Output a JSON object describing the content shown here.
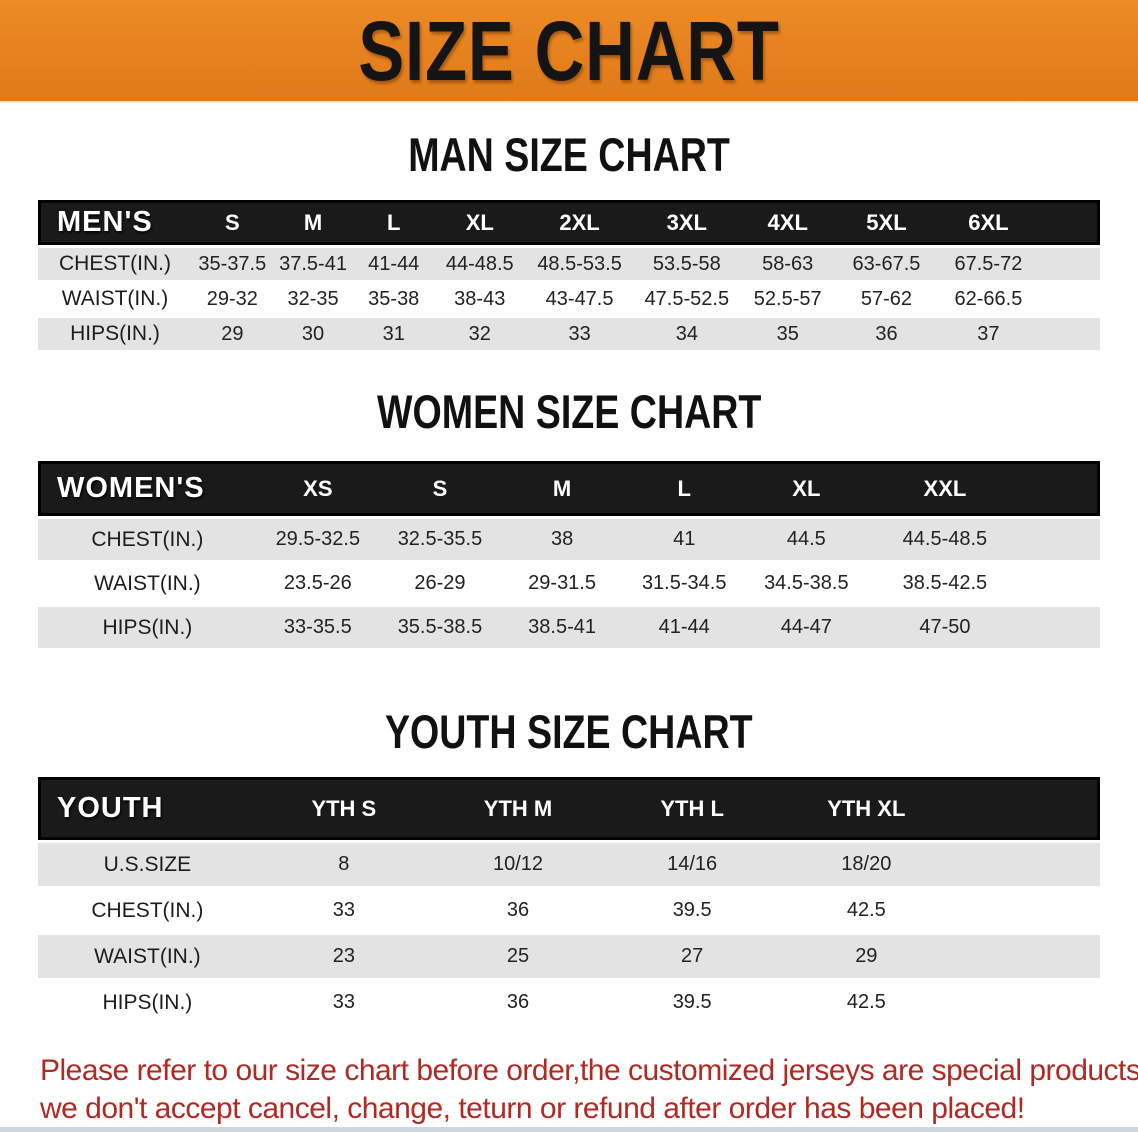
{
  "banner": {
    "title": "SIZE CHART",
    "background": "#e5811e",
    "text_color": "#141414"
  },
  "sections": [
    {
      "heading": "MAN SIZE CHART",
      "table": {
        "label": "MEN'S",
        "columns": [
          "S",
          "M",
          "L",
          "XL",
          "2XL",
          "3XL",
          "4XL",
          "5XL",
          "6XL"
        ],
        "rows": [
          {
            "label": "CHEST(IN.)",
            "values": [
              "35-37.5",
              "37.5-41",
              "41-44",
              "44-48.5",
              "48.5-53.5",
              "53.5-58",
              "58-63",
              "63-67.5",
              "67.5-72"
            ]
          },
          {
            "label": "WAIST(IN.)",
            "values": [
              "29-32",
              "32-35",
              "35-38",
              "38-43",
              "43-47.5",
              "47.5-52.5",
              "52.5-57",
              "57-62",
              "62-66.5"
            ]
          },
          {
            "label": "HIPS(IN.)",
            "values": [
              "29",
              "30",
              "31",
              "32",
              "33",
              "34",
              "35",
              "36",
              "37"
            ]
          }
        ]
      }
    },
    {
      "heading": "WOMEN SIZE CHART",
      "table": {
        "label": "WOMEN'S",
        "columns": [
          "XS",
          "S",
          "M",
          "L",
          "XL",
          "XXL"
        ],
        "rows": [
          {
            "label": "CHEST(IN.)",
            "values": [
              "29.5-32.5",
              "32.5-35.5",
              "38",
              "41",
              "44.5",
              "44.5-48.5"
            ]
          },
          {
            "label": "WAIST(IN.)",
            "values": [
              "23.5-26",
              "26-29",
              "29-31.5",
              "31.5-34.5",
              "34.5-38.5",
              "38.5-42.5"
            ]
          },
          {
            "label": "HIPS(IN.)",
            "values": [
              "33-35.5",
              "35.5-38.5",
              "38.5-41",
              "41-44",
              "44-47",
              "47-50"
            ]
          }
        ]
      }
    },
    {
      "heading": "YOUTH SIZE CHART",
      "table": {
        "label": "YOUTH",
        "columns": [
          "YTH S",
          "YTH M",
          "YTH L",
          "YTH XL"
        ],
        "rows": [
          {
            "label": "U.S.SIZE",
            "values": [
              "8",
              "10/12",
              "14/16",
              "18/20"
            ]
          },
          {
            "label": "CHEST(IN.)",
            "values": [
              "33",
              "36",
              "39.5",
              "42.5"
            ]
          },
          {
            "label": "WAIST(IN.)",
            "values": [
              "23",
              "25",
              "27",
              "29"
            ]
          },
          {
            "label": "HIPS(IN.)",
            "values": [
              "33",
              "36",
              "39.5",
              "42.5"
            ]
          }
        ]
      }
    }
  ],
  "disclaimer": {
    "line1": "Please refer to our size chart before order,the customized jerseys are special products,",
    "line2": "we don't accept cancel, change, teturn or refund after order has been placed!",
    "color": "#b22822"
  },
  "colors": {
    "banner_orange": "#e5811e",
    "table_header_black": "#1a1a1a",
    "row_stripe_gray": "#e3e3e3",
    "disclaimer_red": "#b22822"
  }
}
